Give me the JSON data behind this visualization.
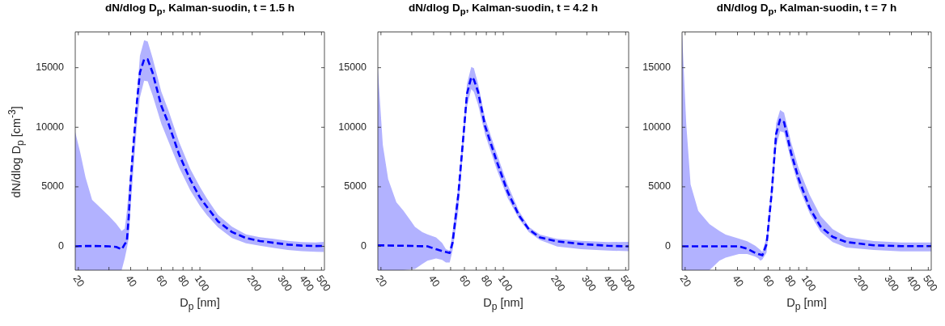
{
  "chart_data": [
    {
      "type": "line",
      "title": "dN/dlog D$_{p}$, Kalman-suodin, t = 1.5 h",
      "xlabel": "D$_{p}$ [nm]",
      "ylabel": "dN/dlog D$_{p}$ [cm$^{-3}$]",
      "log": "x",
      "line_style": "dashed",
      "xlim": [
        19.2,
        520
      ],
      "ylim": [
        -2000,
        18000
      ],
      "xticks": [
        20,
        {
          "value": 30,
          "label": null
        },
        40,
        {
          "value": 50,
          "label": null
        },
        60,
        {
          "value": 70,
          "label": null
        },
        80,
        {
          "value": 90,
          "label": null
        },
        100,
        200,
        300,
        400,
        500
      ],
      "yticks": [
        0,
        5000,
        10000,
        15000
      ],
      "x": [
        19.2,
        20.5,
        22,
        24,
        27,
        30,
        33,
        35.5,
        37,
        38,
        39,
        40,
        41.2,
        43.5,
        45.2,
        47.8,
        50.1,
        53.4,
        60,
        66,
        76,
        88,
        100,
        110,
        127,
        153,
        184,
        221,
        266,
        320,
        385,
        462,
        515
      ],
      "series": [
        {
          "color": "#0000ff",
          "values": [
            0,
            20,
            30,
            30,
            20,
            0,
            -50,
            -250,
            200,
            400,
            2500,
            5500,
            8000,
            12200,
            14600,
            15700,
            15700,
            14600,
            11800,
            10300,
            7700,
            5600,
            4100,
            3300,
            2100,
            1200,
            700,
            450,
            300,
            150,
            60,
            30,
            40
          ],
          "upper": [
            9600,
            7900,
            5800,
            3900,
            3200,
            2550,
            1900,
            1300,
            1500,
            2900,
            4700,
            6300,
            8300,
            12700,
            16000,
            17300,
            17200,
            15850,
            13000,
            11400,
            8750,
            6500,
            5000,
            4000,
            2650,
            1650,
            1000,
            760,
            640,
            470,
            360,
            320,
            380
          ],
          "lower": [
            -2000,
            -2000,
            -2000,
            -2000,
            -2000,
            -2000,
            -2000,
            -2000,
            -1000,
            -200,
            700,
            3400,
            5900,
            10300,
            12500,
            13900,
            13850,
            12700,
            10300,
            8800,
            6600,
            4700,
            3400,
            2600,
            1600,
            700,
            250,
            50,
            -130,
            -310,
            -400,
            -450,
            -470
          ]
        }
      ]
    },
    {
      "type": "line",
      "title": "dN/dlog D$_{p}$, Kalman-suodin, t = 4.2 h",
      "xlabel": "D$_{p}$ [nm]",
      "log": "x",
      "line_style": "dashed",
      "xlim": [
        19.2,
        520
      ],
      "ylim": [
        -2000,
        18000
      ],
      "xticks": [
        20,
        {
          "value": 30,
          "label": null
        },
        40,
        {
          "value": 50,
          "label": null
        },
        60,
        {
          "value": 70,
          "label": null
        },
        80,
        {
          "value": 90,
          "label": null
        },
        100,
        200,
        300,
        400,
        500
      ],
      "yticks": [
        0,
        5000,
        10000,
        15000
      ],
      "x": [
        19.2,
        20.5,
        22,
        24.5,
        26.9,
        31.3,
        34.5,
        36.9,
        41.3,
        44.7,
        47,
        49.4,
        51.3,
        55.3,
        59.6,
        62,
        65.6,
        67.9,
        71.8,
        78.7,
        91.4,
        105.7,
        122.8,
        140,
        162,
        203,
        278,
        396,
        520
      ],
      "series": [
        {
          "color": "#0000ff",
          "values": [
            90,
            80,
            70,
            60,
            50,
            30,
            10,
            0,
            -240,
            -400,
            -470,
            -550,
            300,
            4300,
            9800,
            12800,
            14200,
            14000,
            12960,
            10100,
            7200,
            4600,
            2600,
            1420,
            750,
            420,
            200,
            50,
            0
          ],
          "upper": [
            14960,
            8520,
            5640,
            3700,
            3000,
            1640,
            1200,
            1000,
            750,
            300,
            -240,
            -350,
            1200,
            5000,
            10500,
            13640,
            15070,
            14960,
            13640,
            10750,
            7860,
            5200,
            2980,
            1640,
            980,
            640,
            470,
            360,
            380
          ],
          "lower": [
            -2000,
            -2000,
            -2000,
            -2000,
            -2000,
            -1900,
            -1470,
            -1200,
            -1020,
            -1130,
            -1350,
            -1350,
            -350,
            3000,
            9000,
            11700,
            13190,
            12960,
            11870,
            9400,
            6530,
            4080,
            2310,
            1200,
            530,
            -20,
            -240,
            -360,
            -400
          ]
        }
      ]
    },
    {
      "type": "line",
      "title": "dN/dlog D$_{p}$, Kalman-suodin, t = 7 h",
      "xlabel": "D$_{p}$ [nm]",
      "log": "x",
      "line_style": "dashed",
      "xlim": [
        19.2,
        520
      ],
      "ylim": [
        -2000,
        18000
      ],
      "xticks": [
        20,
        {
          "value": 30,
          "label": null
        },
        40,
        {
          "value": 50,
          "label": null
        },
        60,
        {
          "value": 70,
          "label": null
        },
        80,
        {
          "value": 90,
          "label": null
        },
        100,
        200,
        300,
        400,
        500
      ],
      "yticks": [
        0,
        5000,
        10000,
        15000
      ],
      "x": [
        19.2,
        20.3,
        21.5,
        23.8,
        27.6,
        31.5,
        34.2,
        40.8,
        45.5,
        50.6,
        52.6,
        54.2,
        55.6,
        58.8,
        62.9,
        66.7,
        70.3,
        74.1,
        81.2,
        89.9,
        103.9,
        119.9,
        141,
        169,
        243,
        349,
        520
      ],
      "series": [
        {
          "color": "#0000ff",
          "values": [
            0,
            0,
            0,
            0,
            0,
            0,
            0,
            0,
            -200,
            -550,
            -640,
            -700,
            -750,
            200,
            4500,
            9430,
            10650,
            10430,
            7890,
            5670,
            3230,
            1670,
            800,
            360,
            90,
            20,
            20
          ],
          "upper": [
            17960,
            10300,
            5200,
            2980,
            1870,
            1300,
            980,
            650,
            430,
            50,
            -150,
            -300,
            -470,
            800,
            5300,
            10330,
            11440,
            11220,
            8780,
            6560,
            4340,
            2560,
            1450,
            780,
            450,
            330,
            330
          ],
          "lower": [
            -2000,
            -2000,
            -2000,
            -2000,
            -2000,
            -1200,
            -950,
            -640,
            -640,
            -870,
            -1000,
            -1200,
            -1100,
            -530,
            3690,
            8340,
            9660,
            9560,
            7230,
            5010,
            2790,
            1240,
            360,
            -90,
            -310,
            -420,
            -420
          ]
        }
      ]
    }
  ]
}
